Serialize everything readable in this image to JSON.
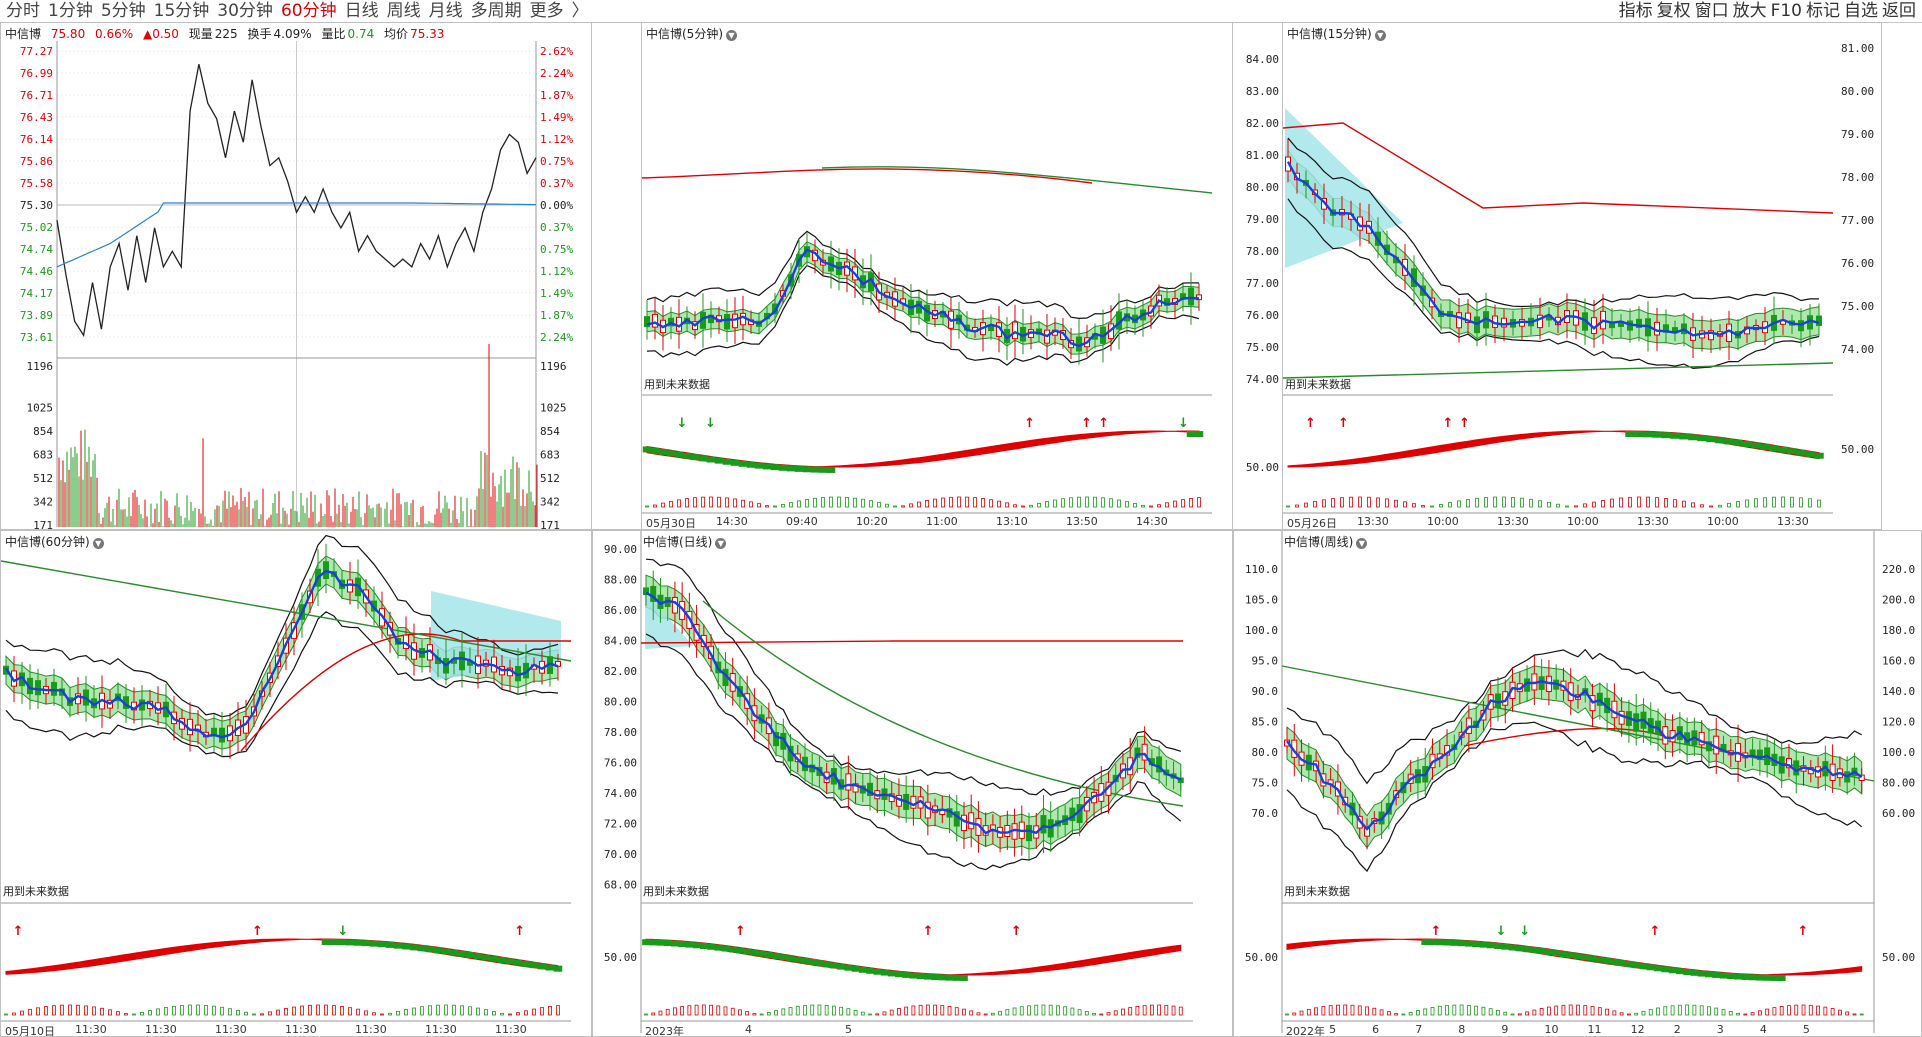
{
  "tabs": [
    "分时",
    "1分钟",
    "5分钟",
    "15分钟",
    "30分钟",
    "60分钟",
    "日线",
    "周线",
    "月线",
    "多周期",
    "更多"
  ],
  "active_tab": "60分钟",
  "more_arrow": "〉",
  "right_buttons": [
    "指标",
    "复权",
    "窗口",
    "放大",
    "F10",
    "标记",
    "自选",
    "返回"
  ],
  "stock": "中信博",
  "colors": {
    "up": "#e00000",
    "down": "#1a9a1a",
    "avg": "#2a7fd0"
  },
  "timeline": {
    "title": "中信博",
    "price": "75.80",
    "pct": "0.66%",
    "chg": "▲0.50",
    "vol_label": "现量",
    "vol": "225",
    "turn_label": "换手",
    "turn": "4.09%",
    "ratio_label": "量比",
    "ratio": "0.74",
    "avg_label": "均价",
    "avg": "75.33",
    "left_axis": [
      "77.27",
      "76.99",
      "76.71",
      "76.43",
      "76.14",
      "75.86",
      "75.58",
      "75.30",
      "75.02",
      "74.74",
      "74.46",
      "74.17",
      "73.89",
      "73.61"
    ],
    "right_axis": [
      "2.62%",
      "2.24%",
      "1.87%",
      "1.49%",
      "1.12%",
      "0.75%",
      "0.37%",
      "0.00%",
      "0.37%",
      "0.75%",
      "1.12%",
      "1.49%",
      "1.87%",
      "2.24%"
    ],
    "vol_axis": [
      "1196",
      "1025",
      "854",
      "683",
      "512",
      "342",
      "171"
    ]
  },
  "p5": {
    "title": "中信博(5分钟)",
    "dates": [
      "05月30日",
      "14:30",
      "09:40",
      "10:20",
      "11:00",
      "13:10",
      "13:50",
      "14:30"
    ],
    "future": "用到未来数据"
  },
  "p15": {
    "title": "中信博(15分钟)",
    "left_axis": [
      "81.00",
      "80.00",
      "79.00",
      "78.00",
      "77.00",
      "76.00",
      "75.00",
      "74.00"
    ],
    "right_axis": [
      "84.00",
      "83.00",
      "82.00",
      "81.00",
      "80.00",
      "79.00",
      "78.00",
      "77.00",
      "76.00",
      "75.00",
      "74.00"
    ],
    "osc_label": "50.00",
    "osc_right": "50.00",
    "dates": [
      "05月26日",
      "13:30",
      "10:00",
      "13:30",
      "10:00",
      "13:30",
      "10:00",
      "13:30"
    ],
    "future": "用到未来数据"
  },
  "p60": {
    "title": "中信博(60分钟)",
    "dates": [
      "05月10日",
      "11:30",
      "11:30",
      "11:30",
      "11:30",
      "11:30",
      "11:30",
      "11:30"
    ],
    "future": "用到未来数据"
  },
  "pday": {
    "title": "中信博(日线)",
    "left_axis": [
      "90.00",
      "88.00",
      "86.00",
      "84.00",
      "82.00",
      "80.00",
      "78.00",
      "76.00",
      "74.00",
      "72.00",
      "70.00",
      "68.00"
    ],
    "osc_label": "50.00",
    "dates": [
      "2023年",
      "4",
      "5"
    ],
    "future": "用到未来数据"
  },
  "pweek": {
    "title": "中信博(周线)",
    "left_axis": [
      "110.0",
      "105.0",
      "100.0",
      "95.0",
      "90.0",
      "85.0",
      "80.0",
      "75.0",
      "70.0"
    ],
    "right_axis": [
      "220.0",
      "200.0",
      "180.0",
      "160.0",
      "140.0",
      "120.0",
      "100.0",
      "80.00",
      "60.00"
    ],
    "osc_label": "50.00",
    "osc_right": "50.00",
    "dates": [
      "2022年",
      "5",
      "6",
      "7",
      "8",
      "9",
      "10",
      "11",
      "12",
      "2",
      "3",
      "4",
      "5"
    ],
    "future": "用到未来数据"
  }
}
